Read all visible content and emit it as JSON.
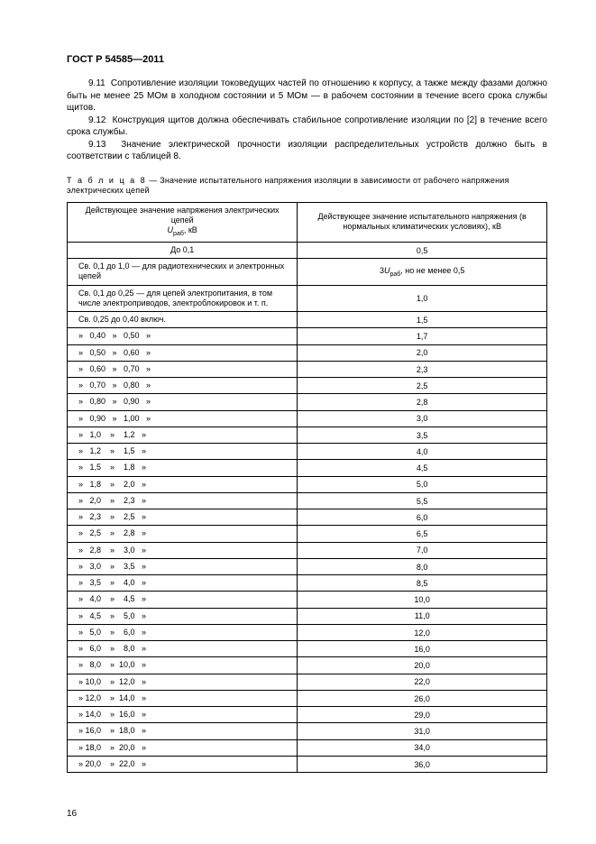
{
  "gost_title": "ГОСТ Р 54585—2011",
  "para_911": "9.11  Сопротивление изоляции токоведущих частей по отношению к корпусу, а также между фазами должно быть не менее 25 МОм в холодном состоянии и 5 МОм — в рабочем состоянии в течение всего срока службы щитов.",
  "para_912": "9.12  Конструкция щитов должна обеспечивать стабильное сопротивление изоляции по [2] в течение всего срока службы.",
  "para_913": "9.13  Значение электрической прочности изоляции распределительных устройств должно быть в соответствии с таблицей 8.",
  "table_caption_label": "Т а б л и ц а  8",
  "table_caption_rest": " — Значение испытательного напряжения изоляции в зависимости от рабочего напряжения электрических цепей",
  "col1_header_pre": "Действующее значение напряжения электрических цепей ",
  "col1_header_var": "U",
  "col1_header_sub": "раб",
  "col1_header_post": ", кВ",
  "col2_header": "Действующее значение испытательного напряжения (в нормальных климатических условиях), кВ",
  "row1_left": "До 0,1",
  "row1_right": "0,5",
  "row2_left": "Св. 0,1 до 1,0 — для радиотехнических и электронных цепей",
  "row2_right_pre": "3",
  "row2_right_var": "U",
  "row2_right_sub": "раб",
  "row2_right_post": ", но не менее 0,5",
  "row3_left": "Св. 0,1 до 0,25 — для цепей электропитания, в том числе электроприводов, электроблокировок и т. п.",
  "row3_right": "1,0",
  "row4_left": "Св. 0,25 до 0,40 включ.",
  "row4_right": "1,5",
  "ranges": [
    {
      "l": "»   0,40   »   0,50   »",
      "r": "1,7"
    },
    {
      "l": "»   0,50   »   0,60   »",
      "r": "2,0"
    },
    {
      "l": "»   0,60   »   0,70   »",
      "r": "2,3"
    },
    {
      "l": "»   0,70   »   0,80   »",
      "r": "2,5"
    },
    {
      "l": "»   0,80   »   0,90   »",
      "r": "2,8"
    },
    {
      "l": "»   0,90   »   1,00   »",
      "r": "3,0"
    },
    {
      "l": "»   1,0    »    1,2   »",
      "r": "3,5"
    },
    {
      "l": "»   1,2    »    1,5   »",
      "r": "4,0"
    },
    {
      "l": "»   1,5    »    1,8   »",
      "r": "4,5"
    },
    {
      "l": "»   1,8    »    2,0   »",
      "r": "5,0"
    },
    {
      "l": "»   2,0    »    2,3   »",
      "r": "5,5"
    },
    {
      "l": "»   2,3    »    2,5   »",
      "r": "6,0"
    },
    {
      "l": "»   2,5    »    2,8   »",
      "r": "6,5"
    },
    {
      "l": "»   2,8    »    3,0   »",
      "r": "7,0"
    },
    {
      "l": "»   3,0    »    3,5   »",
      "r": "8,0"
    },
    {
      "l": "»   3,5    »    4,0   »",
      "r": "8,5"
    },
    {
      "l": "»   4,0    »    4,5   »",
      "r": "10,0"
    },
    {
      "l": "»   4,5    »    5,0   »",
      "r": "11,0"
    },
    {
      "l": "»   5,0    »    6,0   »",
      "r": "12,0"
    },
    {
      "l": "»   6,0    »    8,0   »",
      "r": "16,0"
    },
    {
      "l": "»   8,0    »  10,0   »",
      "r": "20,0"
    },
    {
      "l": "» 10,0    »  12,0   »",
      "r": "22,0"
    },
    {
      "l": "» 12,0    »  14,0   »",
      "r": "26,0"
    },
    {
      "l": "» 14,0    »  16,0   »",
      "r": "29,0"
    },
    {
      "l": "» 16,0    »  18,0   »",
      "r": "31,0"
    },
    {
      "l": "» 18,0    »  20,0   »",
      "r": "34,0"
    },
    {
      "l": "» 20,0    »  22,0   »",
      "r": "36,0"
    }
  ],
  "page_number": "16",
  "col_widths": {
    "left_pct": 48,
    "right_pct": 52
  }
}
